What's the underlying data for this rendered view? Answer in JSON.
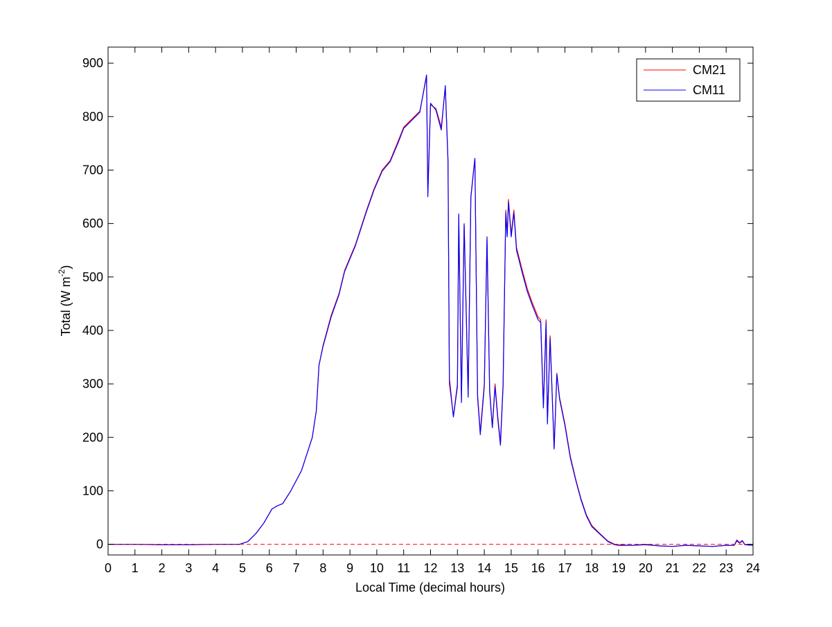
{
  "chart_data": {
    "type": "line",
    "xlabel": "Local Time (decimal hours)",
    "ylabel": "Total (W m",
    "ylabel_sup": "-2",
    "ylabel_close": ")",
    "xlim": [
      0,
      24
    ],
    "ylim": [
      -20,
      930
    ],
    "xticks": [
      "0",
      "1",
      "2",
      "3",
      "4",
      "5",
      "6",
      "7",
      "8",
      "9",
      "10",
      "11",
      "12",
      "13",
      "14",
      "15",
      "16",
      "17",
      "18",
      "19",
      "20",
      "21",
      "22",
      "23",
      "24"
    ],
    "yticks": [
      "0",
      "100",
      "200",
      "300",
      "400",
      "500",
      "600",
      "700",
      "800",
      "900"
    ],
    "grid": false,
    "legend_position": "top-right",
    "reference_line": {
      "y": 0,
      "style": "dashed",
      "color": "#ff0000"
    },
    "series": [
      {
        "name": "CM21",
        "color": "#ff0000",
        "points": [
          [
            0,
            0
          ],
          [
            1,
            0
          ],
          [
            2,
            -1
          ],
          [
            3,
            -1
          ],
          [
            4,
            0
          ],
          [
            4.9,
            0
          ],
          [
            5.2,
            5
          ],
          [
            5.5,
            20
          ],
          [
            5.8,
            40
          ],
          [
            6.1,
            66
          ],
          [
            6.3,
            72
          ],
          [
            6.5,
            76
          ],
          [
            6.8,
            100
          ],
          [
            7.2,
            138
          ],
          [
            7.6,
            200
          ],
          [
            7.75,
            250
          ],
          [
            7.85,
            335
          ],
          [
            8.0,
            372
          ],
          [
            8.3,
            428
          ],
          [
            8.6,
            470
          ],
          [
            8.8,
            512
          ],
          [
            9.2,
            560
          ],
          [
            9.6,
            622
          ],
          [
            9.9,
            665
          ],
          [
            10.2,
            700
          ],
          [
            10.5,
            718
          ],
          [
            10.8,
            755
          ],
          [
            11.0,
            780
          ],
          [
            11.3,
            795
          ],
          [
            11.6,
            810
          ],
          [
            11.85,
            875
          ],
          [
            11.9,
            660
          ],
          [
            12.0,
            822
          ],
          [
            12.2,
            815
          ],
          [
            12.4,
            780
          ],
          [
            12.55,
            855
          ],
          [
            12.65,
            720
          ],
          [
            12.7,
            300
          ],
          [
            12.85,
            240
          ],
          [
            13.0,
            300
          ],
          [
            13.05,
            615
          ],
          [
            13.15,
            270
          ],
          [
            13.25,
            600
          ],
          [
            13.4,
            280
          ],
          [
            13.5,
            650
          ],
          [
            13.6,
            700
          ],
          [
            13.65,
            720
          ],
          [
            13.75,
            280
          ],
          [
            13.85,
            210
          ],
          [
            14.0,
            300
          ],
          [
            14.1,
            570
          ],
          [
            14.2,
            290
          ],
          [
            14.3,
            220
          ],
          [
            14.4,
            300
          ],
          [
            14.5,
            240
          ],
          [
            14.6,
            190
          ],
          [
            14.7,
            300
          ],
          [
            14.8,
            625
          ],
          [
            14.85,
            580
          ],
          [
            14.9,
            645
          ],
          [
            15.0,
            580
          ],
          [
            15.1,
            625
          ],
          [
            15.2,
            555
          ],
          [
            15.4,
            515
          ],
          [
            15.6,
            478
          ],
          [
            15.8,
            450
          ],
          [
            16.0,
            425
          ],
          [
            16.1,
            420
          ],
          [
            16.2,
            260
          ],
          [
            16.3,
            420
          ],
          [
            16.35,
            230
          ],
          [
            16.45,
            390
          ],
          [
            16.6,
            180
          ],
          [
            16.7,
            320
          ],
          [
            16.8,
            275
          ],
          [
            17.0,
            225
          ],
          [
            17.2,
            165
          ],
          [
            17.4,
            122
          ],
          [
            17.6,
            85
          ],
          [
            17.8,
            55
          ],
          [
            18.0,
            35
          ],
          [
            18.3,
            20
          ],
          [
            18.6,
            6
          ],
          [
            18.85,
            0
          ],
          [
            19.0,
            -1
          ],
          [
            19.5,
            -2
          ],
          [
            20.0,
            0
          ],
          [
            20.5,
            -3
          ],
          [
            21.0,
            -4
          ],
          [
            21.5,
            -2
          ],
          [
            22.0,
            -3
          ],
          [
            22.5,
            -4
          ],
          [
            23.0,
            -2
          ],
          [
            23.3,
            -2
          ],
          [
            23.4,
            6
          ],
          [
            23.5,
            2
          ],
          [
            23.6,
            6
          ],
          [
            23.7,
            -1
          ],
          [
            24.0,
            -2
          ]
        ]
      },
      {
        "name": "CM11",
        "color": "#0000ff",
        "points": [
          [
            0,
            0
          ],
          [
            1,
            0
          ],
          [
            2,
            -1
          ],
          [
            3,
            -1
          ],
          [
            4,
            0
          ],
          [
            4.9,
            0
          ],
          [
            5.2,
            5
          ],
          [
            5.5,
            20
          ],
          [
            5.8,
            40
          ],
          [
            6.1,
            66
          ],
          [
            6.3,
            72
          ],
          [
            6.5,
            76
          ],
          [
            6.8,
            100
          ],
          [
            7.2,
            138
          ],
          [
            7.6,
            200
          ],
          [
            7.75,
            250
          ],
          [
            7.85,
            335
          ],
          [
            8.0,
            370
          ],
          [
            8.3,
            425
          ],
          [
            8.6,
            468
          ],
          [
            8.8,
            510
          ],
          [
            9.2,
            558
          ],
          [
            9.6,
            620
          ],
          [
            9.9,
            663
          ],
          [
            10.2,
            698
          ],
          [
            10.5,
            716
          ],
          [
            10.8,
            752
          ],
          [
            11.0,
            778
          ],
          [
            11.3,
            793
          ],
          [
            11.6,
            808
          ],
          [
            11.85,
            878
          ],
          [
            11.9,
            650
          ],
          [
            12.0,
            825
          ],
          [
            12.2,
            812
          ],
          [
            12.4,
            775
          ],
          [
            12.55,
            858
          ],
          [
            12.65,
            715
          ],
          [
            12.7,
            310
          ],
          [
            12.85,
            238
          ],
          [
            13.0,
            295
          ],
          [
            13.05,
            618
          ],
          [
            13.15,
            265
          ],
          [
            13.25,
            598
          ],
          [
            13.4,
            275
          ],
          [
            13.5,
            648
          ],
          [
            13.6,
            698
          ],
          [
            13.65,
            722
          ],
          [
            13.75,
            275
          ],
          [
            13.85,
            205
          ],
          [
            14.0,
            295
          ],
          [
            14.1,
            575
          ],
          [
            14.2,
            285
          ],
          [
            14.3,
            218
          ],
          [
            14.4,
            295
          ],
          [
            14.5,
            235
          ],
          [
            14.6,
            185
          ],
          [
            14.7,
            295
          ],
          [
            14.8,
            620
          ],
          [
            14.85,
            575
          ],
          [
            14.9,
            640
          ],
          [
            15.0,
            575
          ],
          [
            15.1,
            620
          ],
          [
            15.2,
            550
          ],
          [
            15.4,
            510
          ],
          [
            15.6,
            473
          ],
          [
            15.8,
            445
          ],
          [
            16.0,
            420
          ],
          [
            16.1,
            415
          ],
          [
            16.2,
            255
          ],
          [
            16.3,
            415
          ],
          [
            16.35,
            225
          ],
          [
            16.45,
            385
          ],
          [
            16.6,
            178
          ],
          [
            16.7,
            318
          ],
          [
            16.8,
            272
          ],
          [
            17.0,
            222
          ],
          [
            17.2,
            162
          ],
          [
            17.4,
            120
          ],
          [
            17.6,
            83
          ],
          [
            17.8,
            53
          ],
          [
            18.0,
            33
          ],
          [
            18.3,
            19
          ],
          [
            18.6,
            5
          ],
          [
            18.85,
            -1
          ],
          [
            19.0,
            -2
          ],
          [
            19.5,
            -2
          ],
          [
            20.0,
            -1
          ],
          [
            20.5,
            -3
          ],
          [
            21.0,
            -4
          ],
          [
            21.5,
            -2
          ],
          [
            22.0,
            -3
          ],
          [
            22.5,
            -4
          ],
          [
            23.0,
            -2
          ],
          [
            23.3,
            -2
          ],
          [
            23.4,
            8
          ],
          [
            23.5,
            3
          ],
          [
            23.6,
            7
          ],
          [
            23.7,
            -1
          ],
          [
            24.0,
            -2
          ]
        ]
      }
    ]
  }
}
